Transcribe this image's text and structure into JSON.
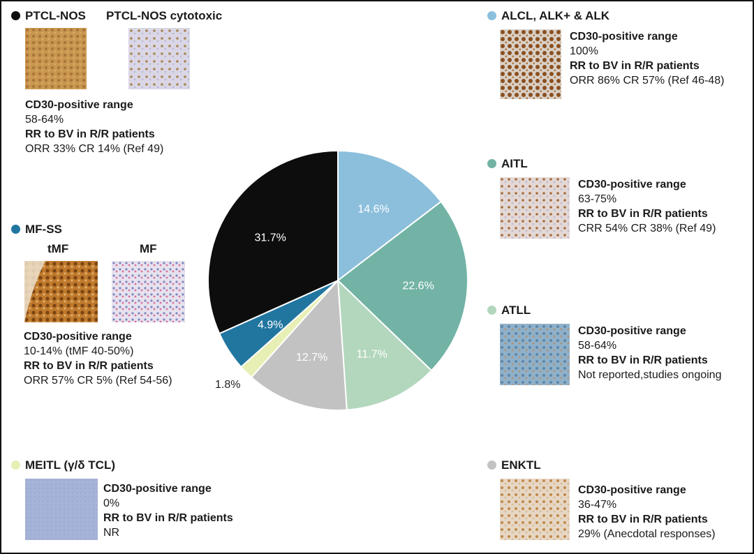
{
  "labels": {
    "cd30_range": "CD30-positive range",
    "rr_bv": "RR to BV in R/R patients"
  },
  "panels": {
    "ptcl": {
      "title": "PTCL-NOS",
      "title2": "PTCL-NOS cytotoxic",
      "cd30": "58-64%",
      "response": "ORR 33% CR 14% (Ref 49)",
      "color": "#0d0d0d"
    },
    "alcl": {
      "title": "ALCL, ALK+ & ALK",
      "cd30": "100%",
      "response": "ORR 86% CR 57% (Ref 46-48)",
      "color": "#8cbfdc"
    },
    "aitl": {
      "title": "AITL",
      "cd30": "63-75%",
      "response": "CRR 54% CR 38% (Ref 49)",
      "color": "#72b3a6"
    },
    "mfss": {
      "title": "MF-SS",
      "sub1": "tMF",
      "sub2": "MF",
      "cd30": "10-14% (tMF 40-50%)",
      "response": "ORR 57% CR 5% (Ref 54-56)",
      "color": "#2176a0"
    },
    "atll": {
      "title": "ATLL",
      "cd30": "58-64%",
      "response": "Not reported,studies ongoing",
      "color": "#b3d7bd"
    },
    "meitl": {
      "title": "MEITL (γ/δ TCL)",
      "cd30": "0%",
      "response": "NR",
      "color": "#e8efb5"
    },
    "enktl": {
      "title": "ENKTL",
      "cd30": "36-47%",
      "response": "29% (Anecdotal responses)",
      "color": "#c2c2c2"
    }
  },
  "chart_data": {
    "type": "pie",
    "title": "",
    "start_angle_deg": 0,
    "direction": "clockwise",
    "series": [
      {
        "name": "ALCL, ALK+ & ALK",
        "value": 14.6,
        "label": "14.6%",
        "color": "#8cbfdc",
        "label_color": "#ffffff"
      },
      {
        "name": "AITL",
        "value": 22.6,
        "label": "22.6%",
        "color": "#72b3a6",
        "label_color": "#ffffff"
      },
      {
        "name": "ATLL",
        "value": 11.7,
        "label": "11.7%",
        "color": "#b3d7bd",
        "label_color": "#ffffff"
      },
      {
        "name": "ENKTL",
        "value": 12.7,
        "label": "12.7%",
        "color": "#c2c2c2",
        "label_color": "#ffffff"
      },
      {
        "name": "MEITL (γ/δ TCL)",
        "value": 1.8,
        "label": "1.8%",
        "color": "#e8efb5",
        "label_color": "#222222",
        "label_outside": true
      },
      {
        "name": "MF-SS",
        "value": 4.9,
        "label": "4.9%",
        "color": "#2176a0",
        "label_color": "#ffffff"
      },
      {
        "name": "PTCL-NOS",
        "value": 31.7,
        "label": "31.7%",
        "color": "#0d0d0d",
        "label_color": "#ffffff"
      }
    ]
  }
}
